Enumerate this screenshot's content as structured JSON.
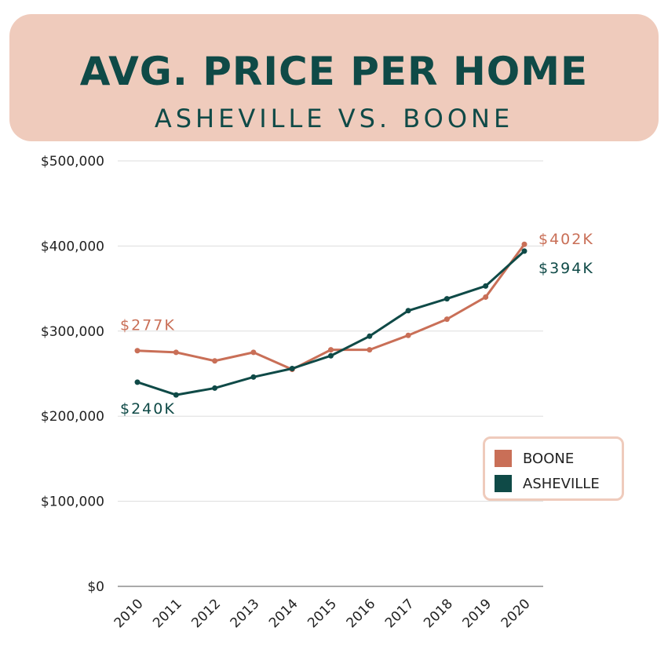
{
  "header": {
    "title": "AVG. PRICE PER HOME",
    "subtitle": "ASHEVILLE VS. BOONE"
  },
  "colors": {
    "banner": "#efcbbc",
    "title": "#0f4a47",
    "boone": "#c96f57",
    "asheville": "#0f4a47",
    "grid": "#dddddd"
  },
  "chart_data": {
    "type": "line",
    "title": "AVG. PRICE PER HOME",
    "subtitle": "ASHEVILLE VS. BOONE",
    "x": [
      "2010",
      "2011",
      "2012",
      "2013",
      "2014",
      "2015",
      "2016",
      "2017",
      "2018",
      "2019",
      "2020"
    ],
    "ylim": [
      0,
      500000
    ],
    "yticks": [
      0,
      100000,
      200000,
      300000,
      400000,
      500000
    ],
    "ytick_labels": [
      "$0",
      "$100,000",
      "$200,000",
      "$300,000",
      "$400,000",
      "$500,000"
    ],
    "grid": true,
    "legend_position": "bottom-right",
    "series": [
      {
        "name": "BOONE",
        "values": [
          277000,
          275000,
          265000,
          275000,
          255000,
          278000,
          278000,
          295000,
          314000,
          340000,
          402000
        ]
      },
      {
        "name": "ASHEVILLE",
        "values": [
          240000,
          225000,
          233000,
          246000,
          256000,
          271000,
          294000,
          324000,
          338000,
          353000,
          394000
        ]
      }
    ],
    "annotations": [
      {
        "series": "BOONE",
        "point": "2010",
        "text": "$277K"
      },
      {
        "series": "ASHEVILLE",
        "point": "2010",
        "text": "$240K"
      },
      {
        "series": "BOONE",
        "point": "2020",
        "text": "$402K"
      },
      {
        "series": "ASHEVILLE",
        "point": "2020",
        "text": "$394K"
      }
    ]
  }
}
